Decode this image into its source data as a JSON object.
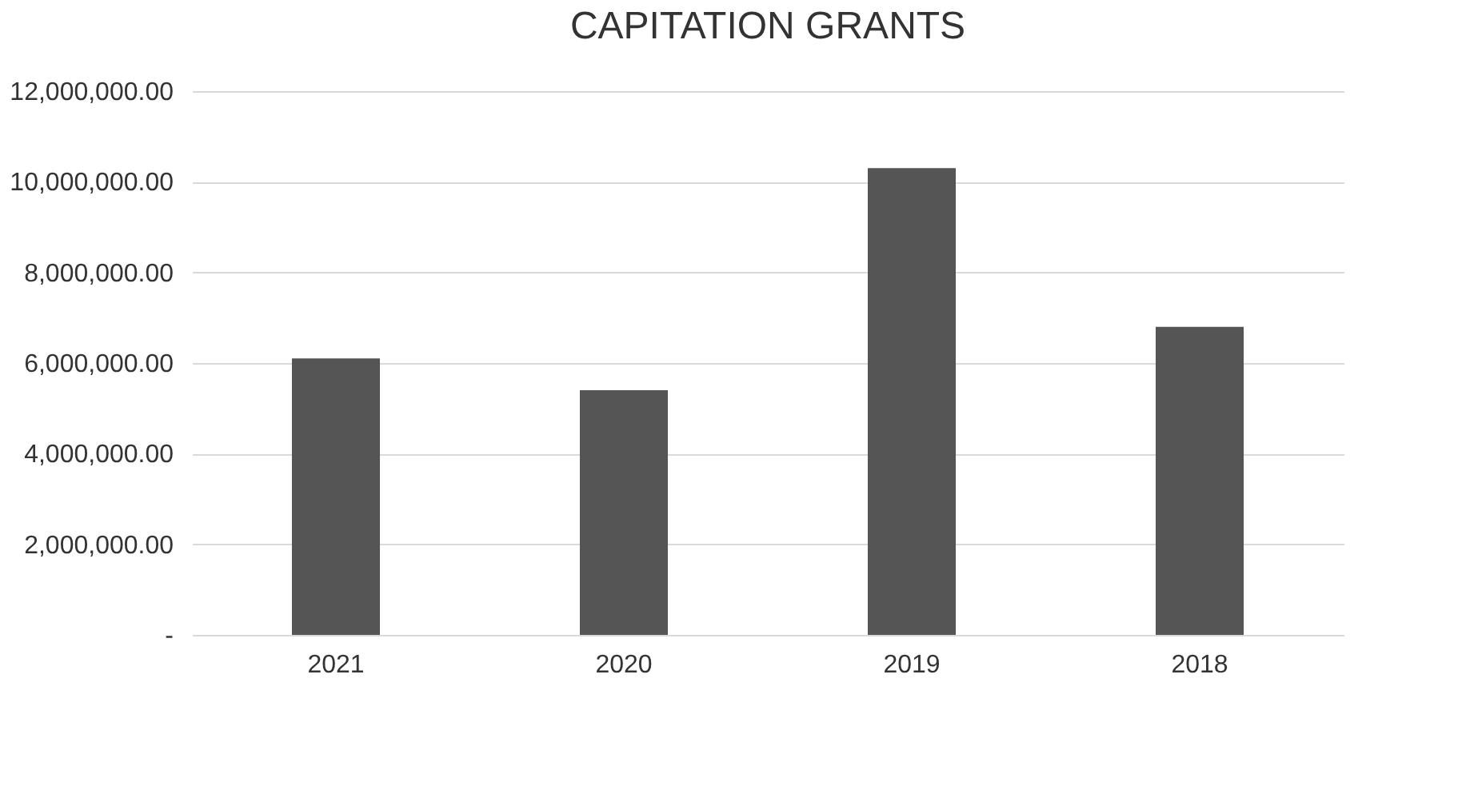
{
  "chart_data": {
    "type": "bar",
    "title": "CAPITATION GRANTS",
    "categories": [
      "2021",
      "2020",
      "2019",
      "2018"
    ],
    "values": [
      6100000,
      5400000,
      10300000,
      6800000
    ],
    "color": "#555555",
    "ylim": [
      0,
      12000000
    ],
    "yticks": [
      {
        "value": 0,
        "label": "-"
      },
      {
        "value": 2000000,
        "label": "2,000,000.00"
      },
      {
        "value": 4000000,
        "label": "4,000,000.00"
      },
      {
        "value": 6000000,
        "label": "6,000,000.00"
      },
      {
        "value": 8000000,
        "label": "8,000,000.00"
      },
      {
        "value": 10000000,
        "label": "10,000,000.00"
      },
      {
        "value": 12000000,
        "label": "12,000,000.00"
      }
    ],
    "grid": "y"
  }
}
